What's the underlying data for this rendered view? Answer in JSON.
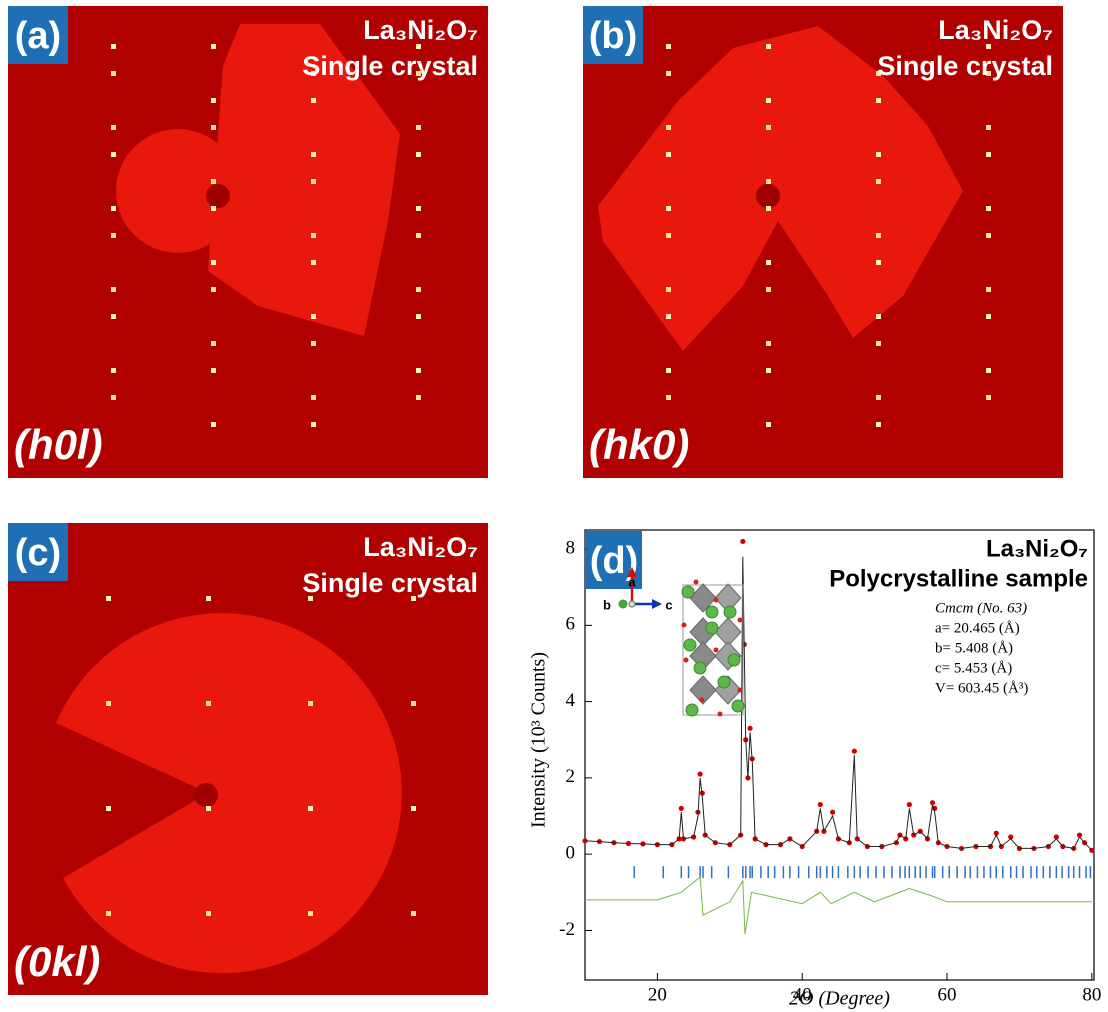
{
  "panels": [
    {
      "label": "(a)",
      "formula": "La₃Ni₂O₇",
      "sample": "Single crystal",
      "plane": "(h0l)"
    },
    {
      "label": "(b)",
      "formula": "La₃Ni₂O₇",
      "sample": "Single crystal",
      "plane": "(hk0)"
    },
    {
      "label": "(c)",
      "formula": "La₃Ni₂O₇",
      "sample": "Single crystal",
      "plane": "(0kl)"
    }
  ],
  "chart_data": {
    "type": "scatter",
    "panel_label": "(d)",
    "title": "La₃Ni₂O₇",
    "subtitle": "Polycrystalline sample",
    "annotations": [
      "Cmcm (No. 63)",
      "a= 20.465 (Å)",
      "b= 5.408 (Å)",
      "c= 5.453 (Å)",
      "V= 603.45 (Å³)"
    ],
    "inset_axes": [
      "a",
      "b",
      "c"
    ],
    "xlabel": "2Θ (Degree)",
    "ylabel": "Intensity (10³ Counts)",
    "xlim": [
      10,
      80.3
    ],
    "ylim": [
      -3.3,
      8.5
    ],
    "xticks": [
      20,
      40,
      60,
      80
    ],
    "yticks": [
      -2,
      0,
      2,
      4,
      6,
      8
    ],
    "series": [
      {
        "style": "points",
        "color": "#d40000",
        "x": [
          10,
          12,
          14,
          16,
          18,
          20,
          22,
          23,
          23.3,
          23.6,
          25,
          25.6,
          25.9,
          26.2,
          26.6,
          28,
          30,
          31.5,
          31.8,
          32.0,
          32.2,
          32.5,
          32.8,
          33.1,
          33.5,
          35,
          37,
          38.3,
          40,
          42,
          42.5,
          43,
          44.2,
          45,
          46.5,
          47.2,
          47.6,
          49,
          51,
          53,
          53.5,
          54.3,
          54.8,
          55.4,
          56.3,
          57.3,
          58,
          58.3,
          58.8,
          60,
          62,
          64,
          66,
          66.8,
          67.5,
          68.8,
          70,
          72,
          74,
          75.1,
          76,
          77.5,
          78.3,
          79,
          80
        ],
        "values": [
          0.35,
          0.33,
          0.3,
          0.28,
          0.27,
          0.25,
          0.25,
          0.4,
          1.2,
          0.4,
          0.45,
          1.1,
          2.1,
          1.6,
          0.5,
          0.3,
          0.25,
          0.5,
          8.2,
          5.5,
          3.0,
          2.0,
          3.3,
          2.5,
          0.4,
          0.25,
          0.25,
          0.4,
          0.2,
          0.6,
          1.3,
          0.6,
          1.1,
          0.4,
          0.3,
          2.7,
          0.4,
          0.2,
          0.2,
          0.3,
          0.5,
          0.4,
          1.3,
          0.5,
          0.6,
          0.4,
          1.35,
          1.2,
          0.3,
          0.2,
          0.15,
          0.2,
          0.2,
          0.55,
          0.2,
          0.45,
          0.15,
          0.15,
          0.2,
          0.45,
          0.2,
          0.15,
          0.5,
          0.3,
          0.1
        ]
      },
      {
        "style": "line",
        "color": "#222222",
        "x": [
          10,
          12,
          14,
          16,
          18,
          20,
          22,
          23,
          23.3,
          23.6,
          25,
          25.6,
          25.9,
          26.2,
          26.6,
          28,
          30,
          31.5,
          31.8,
          32.0,
          32.2,
          32.5,
          32.8,
          33.1,
          33.5,
          35,
          37,
          38.3,
          40,
          42,
          42.5,
          43,
          44.2,
          45,
          46.5,
          47.2,
          47.6,
          49,
          51,
          53,
          53.5,
          54.3,
          54.8,
          55.4,
          56.3,
          57.3,
          58,
          58.3,
          58.8,
          60,
          62,
          64,
          66,
          66.8,
          67.5,
          68.8,
          70,
          72,
          74,
          75.1,
          76,
          77.5,
          78.3,
          79,
          80
        ],
        "values": [
          0.35,
          0.33,
          0.3,
          0.28,
          0.27,
          0.25,
          0.25,
          0.4,
          1.1,
          0.4,
          0.45,
          1.0,
          2.0,
          1.5,
          0.5,
          0.3,
          0.25,
          0.5,
          7.8,
          5.3,
          3.0,
          2.0,
          3.2,
          2.4,
          0.4,
          0.25,
          0.25,
          0.4,
          0.2,
          0.6,
          1.2,
          0.6,
          1.0,
          0.4,
          0.3,
          2.6,
          0.4,
          0.2,
          0.2,
          0.3,
          0.5,
          0.4,
          1.2,
          0.5,
          0.6,
          0.4,
          1.3,
          1.1,
          0.3,
          0.2,
          0.15,
          0.2,
          0.2,
          0.5,
          0.2,
          0.4,
          0.15,
          0.15,
          0.2,
          0.4,
          0.2,
          0.15,
          0.45,
          0.3,
          0.1
        ]
      },
      {
        "style": "difference",
        "color": "#7ab648",
        "x": [
          10,
          20,
          23.3,
          25.9,
          26.3,
          30,
          31.8,
          32.1,
          33,
          40,
          42.5,
          44,
          47.2,
          50,
          54.8,
          58,
          60,
          70,
          80
        ],
        "values": [
          -1.2,
          -1.2,
          -1.0,
          -0.6,
          -1.6,
          -1.25,
          -0.7,
          -2.1,
          -1.0,
          -1.3,
          -1.0,
          -1.3,
          -1.0,
          -1.25,
          -0.9,
          -1.1,
          -1.25,
          -1.25,
          -1.25
        ]
      }
    ],
    "bragg_color": "#2f6fc4",
    "bragg_positions": [
      16.8,
      20.8,
      23.3,
      24.3,
      25.9,
      26.3,
      27.5,
      29.8,
      31.8,
      32.2,
      32.8,
      33.1,
      34.3,
      35.3,
      36.2,
      37.4,
      38.3,
      39.5,
      40.9,
      42.0,
      42.5,
      43.4,
      44.2,
      45.0,
      46.3,
      47.2,
      48.0,
      49.1,
      50.2,
      51.3,
      52.4,
      53.5,
      54.2,
      54.8,
      55.6,
      56.3,
      57.1,
      58.0,
      58.3,
      59.4,
      60.3,
      61.4,
      62.5,
      63.2,
      64.2,
      65.1,
      66.0,
      66.8,
      67.7,
      68.8,
      69.6,
      70.5,
      71.6,
      72.4,
      73.3,
      74.2,
      75.1,
      75.9,
      76.8,
      77.5,
      78.3,
      79.2,
      79.8
    ]
  }
}
